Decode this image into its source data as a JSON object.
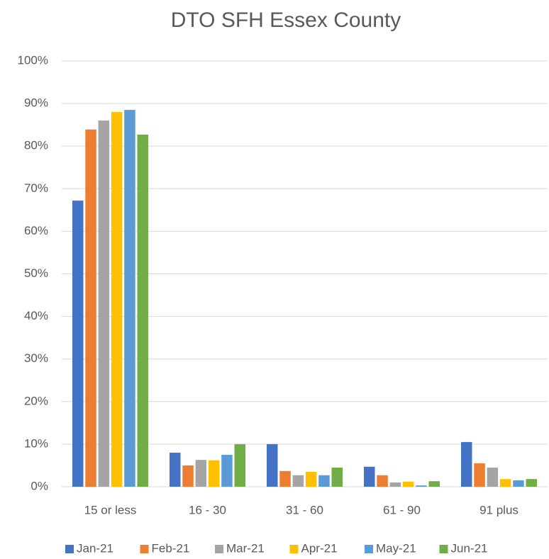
{
  "chart_data": {
    "type": "bar",
    "title": "DTO SFH Essex County",
    "categories": [
      "15 or less",
      "16 - 30",
      "31 - 60",
      "61 - 90",
      "91 plus"
    ],
    "series": [
      {
        "name": "Jan-21",
        "color": "#4472c4",
        "values": [
          67.2,
          8,
          10,
          4.7,
          10.5
        ]
      },
      {
        "name": "Feb-21",
        "color": "#ed7d31",
        "values": [
          83.9,
          5,
          3.7,
          2.7,
          5.5
        ]
      },
      {
        "name": "Mar-21",
        "color": "#a5a5a5",
        "values": [
          86,
          6.3,
          2.7,
          1,
          4.5
        ]
      },
      {
        "name": "Apr-21",
        "color": "#ffc000",
        "values": [
          88,
          6.2,
          3.5,
          1.2,
          1.8
        ]
      },
      {
        "name": "May-21",
        "color": "#5b9bd5",
        "values": [
          88.5,
          7.5,
          2.7,
          0.3,
          1.5
        ]
      },
      {
        "name": "Jun-21",
        "color": "#70ad47",
        "values": [
          82.7,
          10,
          4.5,
          1.3,
          1.8
        ]
      }
    ],
    "ylim": [
      0,
      100
    ],
    "yticks": [
      {
        "value": 0,
        "label": "0%"
      },
      {
        "value": 10,
        "label": "10%"
      },
      {
        "value": 20,
        "label": "20%"
      },
      {
        "value": 30,
        "label": "30%"
      },
      {
        "value": 40,
        "label": "40%"
      },
      {
        "value": 50,
        "label": "50%"
      },
      {
        "value": 60,
        "label": "60%"
      },
      {
        "value": 70,
        "label": "70%"
      },
      {
        "value": 80,
        "label": "80%"
      },
      {
        "value": 90,
        "label": "90%"
      },
      {
        "value": 100,
        "label": "100%"
      }
    ],
    "grid": true,
    "legend": "bottom"
  }
}
